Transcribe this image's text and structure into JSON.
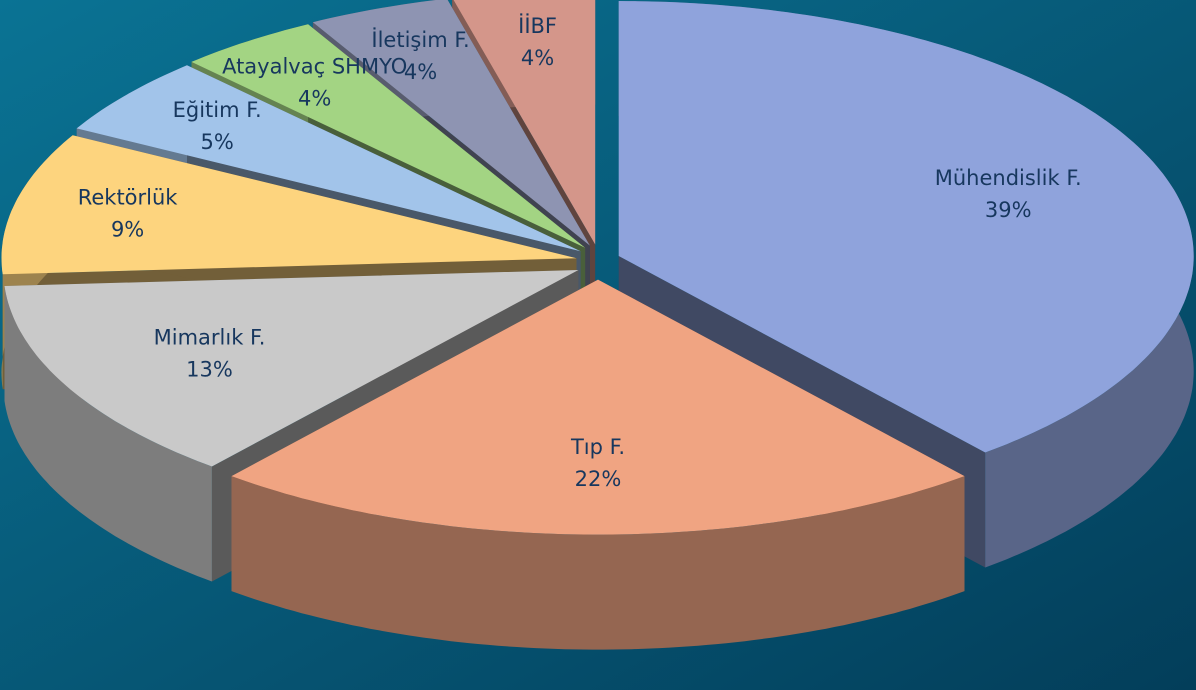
{
  "chart_data": {
    "type": "pie",
    "categories": [
      "Mühendislik F.",
      "Tıp F.",
      "Mimarlık F.",
      "Rektörlük",
      "Eğitim F.",
      "Atayalvaç SHMYO",
      "İletişim F.",
      "İİBF"
    ],
    "values": [
      39,
      22,
      13,
      9,
      5,
      4,
      4,
      4
    ],
    "value_labels": [
      "39%",
      "22%",
      "13%",
      "9%",
      "5%",
      "4%",
      "4%",
      "4%"
    ],
    "colors": [
      "#8fa3dc",
      "#f0a482",
      "#c9c9c9",
      "#fdd47e",
      "#a2c4ea",
      "#a3d483",
      "#8e94b2",
      "#d4968a"
    ]
  }
}
